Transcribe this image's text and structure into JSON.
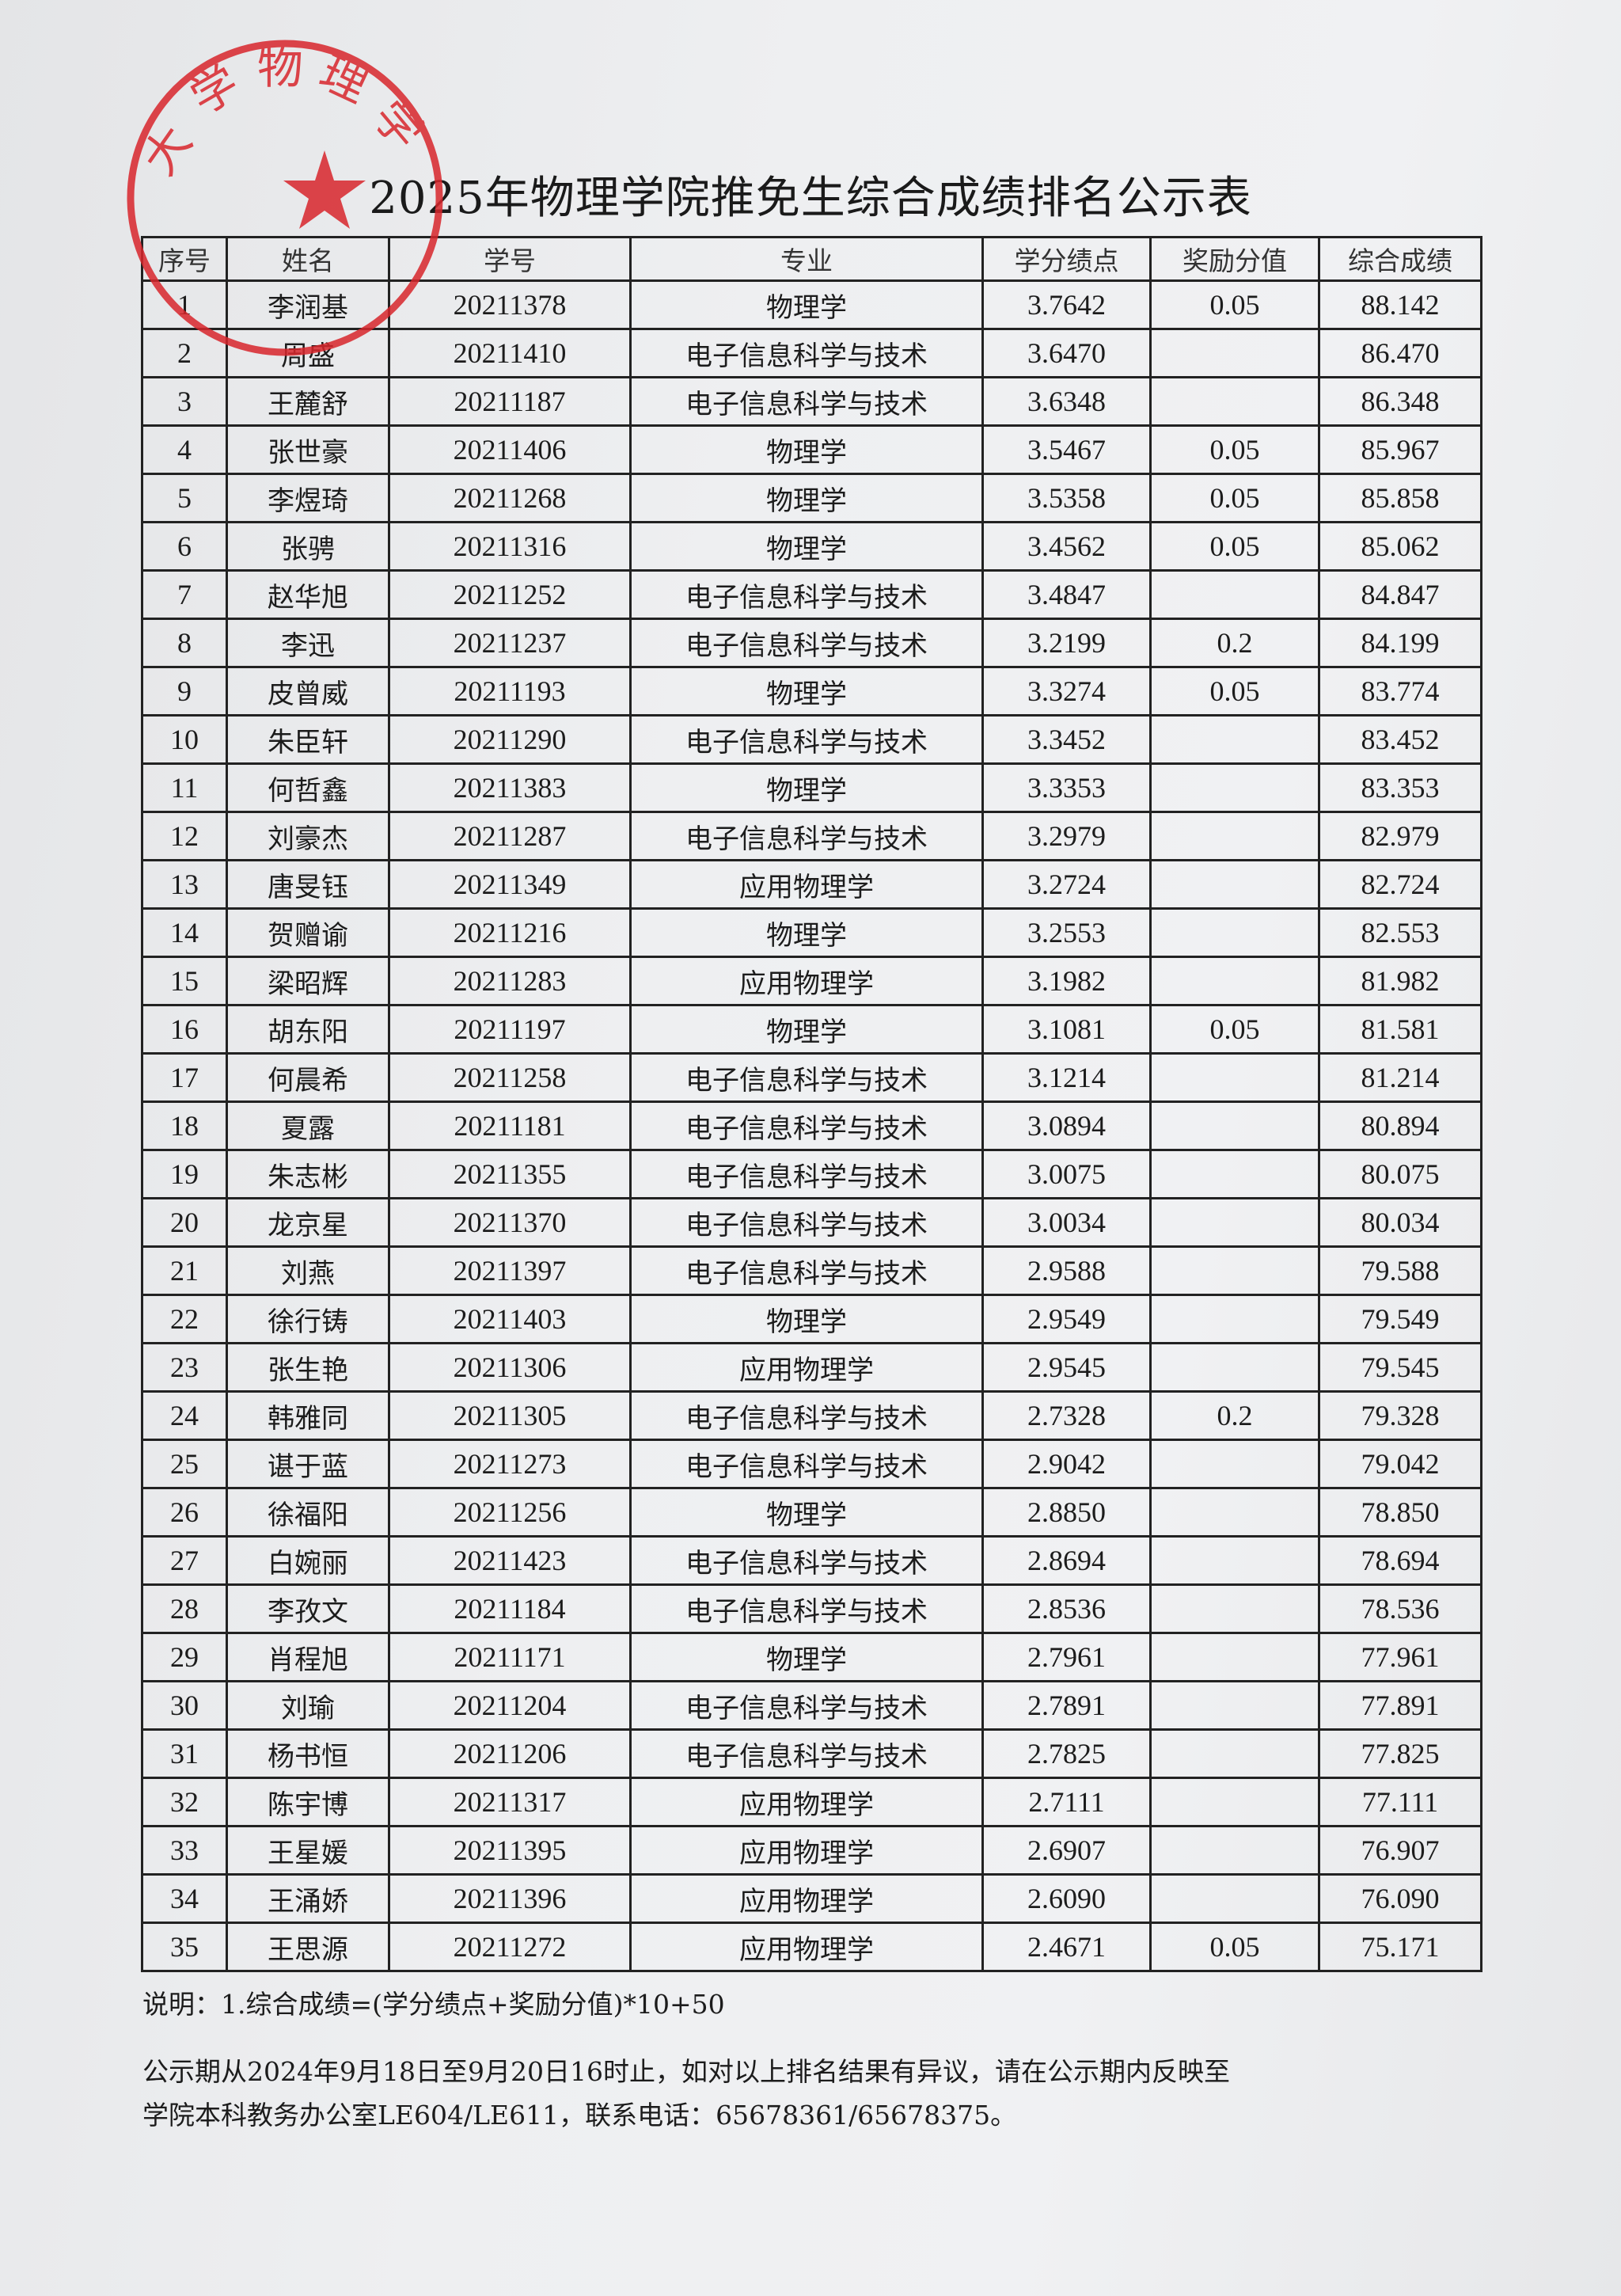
{
  "title": "2025年物理学院推免生综合成绩排名公示表",
  "stamp": {
    "text": "大学物理学",
    "color": "#d8262c"
  },
  "columns": [
    "序号",
    "姓名",
    "学号",
    "专业",
    "学分绩点",
    "奖励分值",
    "综合成绩"
  ],
  "rows": [
    [
      "1",
      "李润基",
      "20211378",
      "物理学",
      "3.7642",
      "0.05",
      "88.142"
    ],
    [
      "2",
      "周盛",
      "20211410",
      "电子信息科学与技术",
      "3.6470",
      "",
      "86.470"
    ],
    [
      "3",
      "王麓舒",
      "20211187",
      "电子信息科学与技术",
      "3.6348",
      "",
      "86.348"
    ],
    [
      "4",
      "张世豪",
      "20211406",
      "物理学",
      "3.5467",
      "0.05",
      "85.967"
    ],
    [
      "5",
      "李煜琦",
      "20211268",
      "物理学",
      "3.5358",
      "0.05",
      "85.858"
    ],
    [
      "6",
      "张骋",
      "20211316",
      "物理学",
      "3.4562",
      "0.05",
      "85.062"
    ],
    [
      "7",
      "赵华旭",
      "20211252",
      "电子信息科学与技术",
      "3.4847",
      "",
      "84.847"
    ],
    [
      "8",
      "李迅",
      "20211237",
      "电子信息科学与技术",
      "3.2199",
      "0.2",
      "84.199"
    ],
    [
      "9",
      "皮曾威",
      "20211193",
      "物理学",
      "3.3274",
      "0.05",
      "83.774"
    ],
    [
      "10",
      "朱臣轩",
      "20211290",
      "电子信息科学与技术",
      "3.3452",
      "",
      "83.452"
    ],
    [
      "11",
      "何哲鑫",
      "20211383",
      "物理学",
      "3.3353",
      "",
      "83.353"
    ],
    [
      "12",
      "刘豪杰",
      "20211287",
      "电子信息科学与技术",
      "3.2979",
      "",
      "82.979"
    ],
    [
      "13",
      "唐旻钰",
      "20211349",
      "应用物理学",
      "3.2724",
      "",
      "82.724"
    ],
    [
      "14",
      "贺赠谕",
      "20211216",
      "物理学",
      "3.2553",
      "",
      "82.553"
    ],
    [
      "15",
      "梁昭辉",
      "20211283",
      "应用物理学",
      "3.1982",
      "",
      "81.982"
    ],
    [
      "16",
      "胡东阳",
      "20211197",
      "物理学",
      "3.1081",
      "0.05",
      "81.581"
    ],
    [
      "17",
      "何晨希",
      "20211258",
      "电子信息科学与技术",
      "3.1214",
      "",
      "81.214"
    ],
    [
      "18",
      "夏露",
      "20211181",
      "电子信息科学与技术",
      "3.0894",
      "",
      "80.894"
    ],
    [
      "19",
      "朱志彬",
      "20211355",
      "电子信息科学与技术",
      "3.0075",
      "",
      "80.075"
    ],
    [
      "20",
      "龙京星",
      "20211370",
      "电子信息科学与技术",
      "3.0034",
      "",
      "80.034"
    ],
    [
      "21",
      "刘燕",
      "20211397",
      "电子信息科学与技术",
      "2.9588",
      "",
      "79.588"
    ],
    [
      "22",
      "徐行铸",
      "20211403",
      "物理学",
      "2.9549",
      "",
      "79.549"
    ],
    [
      "23",
      "张生艳",
      "20211306",
      "应用物理学",
      "2.9545",
      "",
      "79.545"
    ],
    [
      "24",
      "韩雅同",
      "20211305",
      "电子信息科学与技术",
      "2.7328",
      "0.2",
      "79.328"
    ],
    [
      "25",
      "谌于蓝",
      "20211273",
      "电子信息科学与技术",
      "2.9042",
      "",
      "79.042"
    ],
    [
      "26",
      "徐福阳",
      "20211256",
      "物理学",
      "2.8850",
      "",
      "78.850"
    ],
    [
      "27",
      "白婉丽",
      "20211423",
      "电子信息科学与技术",
      "2.8694",
      "",
      "78.694"
    ],
    [
      "28",
      "李孜文",
      "20211184",
      "电子信息科学与技术",
      "2.8536",
      "",
      "78.536"
    ],
    [
      "29",
      "肖程旭",
      "20211171",
      "物理学",
      "2.7961",
      "",
      "77.961"
    ],
    [
      "30",
      "刘瑜",
      "20211204",
      "电子信息科学与技术",
      "2.7891",
      "",
      "77.891"
    ],
    [
      "31",
      "杨书恒",
      "20211206",
      "电子信息科学与技术",
      "2.7825",
      "",
      "77.825"
    ],
    [
      "32",
      "陈宇博",
      "20211317",
      "应用物理学",
      "2.7111",
      "",
      "77.111"
    ],
    [
      "33",
      "王星媛",
      "20211395",
      "应用物理学",
      "2.6907",
      "",
      "76.907"
    ],
    [
      "34",
      "王涌娇",
      "20211396",
      "应用物理学",
      "2.6090",
      "",
      "76.090"
    ],
    [
      "35",
      "王思源",
      "20211272",
      "应用物理学",
      "2.4671",
      "0.05",
      "75.171"
    ]
  ],
  "notes": {
    "formula": "说明：1.综合成绩=(学分绩点+奖励分值)*10+50",
    "period_line1": "公示期从2024年9月18日至9月20日16时止，如对以上排名结果有异议，请在公示期内反映至",
    "period_line2": "学院本科教务办公室LE604/LE611，联系电话：65678361/65678375。"
  }
}
